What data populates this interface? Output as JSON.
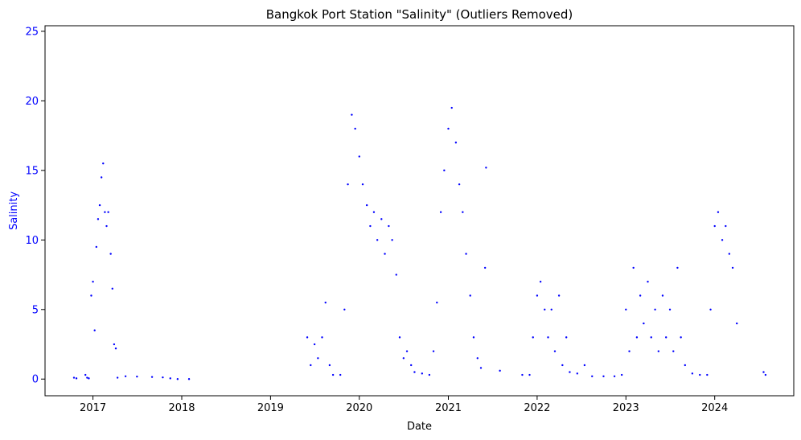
{
  "colors": {
    "points": "#0000ff",
    "ylabel": "#0000ff",
    "yticks": "#0000ff",
    "axis": "#000000"
  },
  "chart_data": {
    "type": "scatter",
    "title": "Bangkok Port Station \"Salinity\" (Outliers Removed)",
    "xlabel": "Date",
    "ylabel": "Salinity",
    "x_type": "date",
    "xlim": [
      "2016-06-18",
      "2024-11-21"
    ],
    "ylim": [
      -1.2,
      25.4
    ],
    "x_ticks": [
      "2017",
      "2018",
      "2019",
      "2020",
      "2021",
      "2022",
      "2023",
      "2024"
    ],
    "y_ticks": [
      0,
      5,
      10,
      15,
      20,
      25
    ],
    "grid": false,
    "legend": "none",
    "marker_color": "#0000ff",
    "series": [
      {
        "data_points": [
          [
            "2016-10-15",
            0.1
          ],
          [
            "2016-10-25",
            0.05
          ],
          [
            "2016-12-01",
            0.3
          ],
          [
            "2016-12-08",
            0.1
          ],
          [
            "2016-12-15",
            0.05
          ],
          [
            "2016-12-25",
            6.0
          ],
          [
            "2017-01-01",
            7.0
          ],
          [
            "2017-01-08",
            3.5
          ],
          [
            "2017-01-15",
            9.5
          ],
          [
            "2017-01-22",
            11.5
          ],
          [
            "2017-01-29",
            12.5
          ],
          [
            "2017-02-05",
            14.5
          ],
          [
            "2017-02-12",
            15.5
          ],
          [
            "2017-02-19",
            12.0
          ],
          [
            "2017-02-26",
            11.0
          ],
          [
            "2017-03-05",
            12.0
          ],
          [
            "2017-03-15",
            9.0
          ],
          [
            "2017-03-22",
            6.5
          ],
          [
            "2017-03-29",
            2.5
          ],
          [
            "2017-04-05",
            2.2
          ],
          [
            "2017-04-12",
            0.1
          ],
          [
            "2017-05-15",
            0.2
          ],
          [
            "2017-07-01",
            0.18
          ],
          [
            "2017-09-01",
            0.15
          ],
          [
            "2017-10-15",
            0.12
          ],
          [
            "2017-11-15",
            0.05
          ],
          [
            "2017-12-15",
            0.0
          ],
          [
            "2018-01-31",
            0.0
          ],
          [
            "2019-06-01",
            3.0
          ],
          [
            "2019-06-15",
            1.0
          ],
          [
            "2019-07-01",
            2.5
          ],
          [
            "2019-07-15",
            1.5
          ],
          [
            "2019-08-01",
            3.0
          ],
          [
            "2019-08-15",
            5.5
          ],
          [
            "2019-09-01",
            1.0
          ],
          [
            "2019-09-15",
            0.3
          ],
          [
            "2019-10-15",
            0.3
          ],
          [
            "2019-11-01",
            5.0
          ],
          [
            "2019-11-15",
            14.0
          ],
          [
            "2019-12-01",
            19.0
          ],
          [
            "2019-12-15",
            18.0
          ],
          [
            "2020-01-01",
            16.0
          ],
          [
            "2020-01-15",
            14.0
          ],
          [
            "2020-02-01",
            12.5
          ],
          [
            "2020-02-15",
            11.0
          ],
          [
            "2020-03-01",
            12.0
          ],
          [
            "2020-03-15",
            10.0
          ],
          [
            "2020-04-01",
            11.5
          ],
          [
            "2020-04-15",
            9.0
          ],
          [
            "2020-05-01",
            11.0
          ],
          [
            "2020-05-15",
            10.0
          ],
          [
            "2020-06-01",
            7.5
          ],
          [
            "2020-06-15",
            3.0
          ],
          [
            "2020-07-01",
            1.5
          ],
          [
            "2020-07-15",
            2.0
          ],
          [
            "2020-08-01",
            1.0
          ],
          [
            "2020-08-15",
            0.5
          ],
          [
            "2020-09-15",
            0.4
          ],
          [
            "2020-10-15",
            0.3
          ],
          [
            "2020-11-01",
            2.0
          ],
          [
            "2020-11-15",
            5.5
          ],
          [
            "2020-12-01",
            12.0
          ],
          [
            "2020-12-15",
            15.0
          ],
          [
            "2021-01-01",
            18.0
          ],
          [
            "2021-01-15",
            19.5
          ],
          [
            "2021-02-01",
            17.0
          ],
          [
            "2021-02-15",
            14.0
          ],
          [
            "2021-03-01",
            12.0
          ],
          [
            "2021-03-15",
            9.0
          ],
          [
            "2021-04-01",
            6.0
          ],
          [
            "2021-04-15",
            3.0
          ],
          [
            "2021-05-01",
            1.5
          ],
          [
            "2021-05-15",
            0.8
          ],
          [
            "2021-06-01",
            8.0
          ],
          [
            "2021-06-05",
            15.2
          ],
          [
            "2021-08-01",
            0.6
          ],
          [
            "2021-11-01",
            0.3
          ],
          [
            "2021-12-01",
            0.3
          ],
          [
            "2021-12-15",
            3.0
          ],
          [
            "2022-01-01",
            6.0
          ],
          [
            "2022-01-15",
            7.0
          ],
          [
            "2022-02-01",
            5.0
          ],
          [
            "2022-02-15",
            3.0
          ],
          [
            "2022-03-01",
            5.0
          ],
          [
            "2022-03-15",
            2.0
          ],
          [
            "2022-04-01",
            6.0
          ],
          [
            "2022-04-15",
            1.0
          ],
          [
            "2022-05-01",
            3.0
          ],
          [
            "2022-05-15",
            0.5
          ],
          [
            "2022-06-15",
            0.4
          ],
          [
            "2022-07-15",
            1.0
          ],
          [
            "2022-08-15",
            0.2
          ],
          [
            "2022-10-01",
            0.2
          ],
          [
            "2022-11-15",
            0.2
          ],
          [
            "2022-12-15",
            0.3
          ],
          [
            "2023-01-01",
            5.0
          ],
          [
            "2023-01-15",
            2.0
          ],
          [
            "2023-02-01",
            8.0
          ],
          [
            "2023-02-15",
            3.0
          ],
          [
            "2023-03-01",
            6.0
          ],
          [
            "2023-03-15",
            4.0
          ],
          [
            "2023-04-01",
            7.0
          ],
          [
            "2023-04-15",
            3.0
          ],
          [
            "2023-05-01",
            5.0
          ],
          [
            "2023-05-15",
            2.0
          ],
          [
            "2023-06-01",
            6.0
          ],
          [
            "2023-06-15",
            3.0
          ],
          [
            "2023-07-01",
            5.0
          ],
          [
            "2023-07-15",
            2.0
          ],
          [
            "2023-08-01",
            8.0
          ],
          [
            "2023-08-15",
            3.0
          ],
          [
            "2023-09-01",
            1.0
          ],
          [
            "2023-10-01",
            0.4
          ],
          [
            "2023-11-01",
            0.3
          ],
          [
            "2023-12-01",
            0.3
          ],
          [
            "2023-12-15",
            5.0
          ],
          [
            "2024-01-01",
            11.0
          ],
          [
            "2024-01-15",
            12.0
          ],
          [
            "2024-02-01",
            10.0
          ],
          [
            "2024-02-15",
            11.0
          ],
          [
            "2024-03-01",
            9.0
          ],
          [
            "2024-03-15",
            8.0
          ],
          [
            "2024-04-01",
            4.0
          ],
          [
            "2024-07-20",
            0.5
          ],
          [
            "2024-07-28",
            0.3
          ]
        ]
      }
    ]
  }
}
